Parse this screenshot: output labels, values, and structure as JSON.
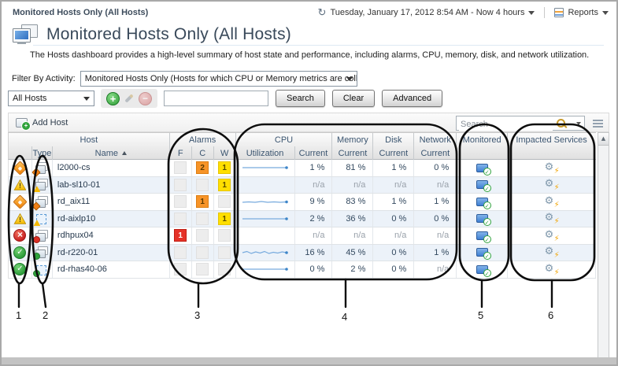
{
  "breadcrumb": "Monitored Hosts Only (All Hosts)",
  "topbar": {
    "time_range": "Tuesday, January 17, 2012 8:54 AM - Now 4 hours",
    "reports": "Reports"
  },
  "page": {
    "title": "Monitored Hosts Only (All Hosts)",
    "description": "The Hosts dashboard provides a high-level summary of host state and performance, including alarms, CPU, memory, disk, and network utilization."
  },
  "filter": {
    "label": "Filter By Activity:",
    "value": "Monitored Hosts Only (Hosts for which CPU or Memory metrics are collected)"
  },
  "toolbar": {
    "scope_value": "All Hosts",
    "search_value": "",
    "search": "Search",
    "clear": "Clear",
    "advanced": "Advanced"
  },
  "grid_toolbar": {
    "add_host": "Add Host",
    "search_placeholder": "Search"
  },
  "table": {
    "groups": {
      "host": "Host",
      "alarms": "Alarms",
      "cpu": "CPU",
      "memory": "Memory",
      "disk": "Disk",
      "network": "Network",
      "monitored": "Monitored",
      "impacted": "Impacted Services"
    },
    "subs": {
      "type": "Type",
      "name": "Name",
      "f": "F",
      "c": "C",
      "w": "W",
      "utilization": "Utilization",
      "current": "Current"
    },
    "sort_column": "Name",
    "sort_ascending": true,
    "rows": [
      {
        "name": "l2000-cs",
        "severity": "critical",
        "type": "physical",
        "alarms": {
          "f": "",
          "c": "2",
          "w": "1"
        },
        "spark": [
          7,
          7,
          7,
          7,
          7,
          7
        ],
        "cpu": "1 %",
        "memory": "81 %",
        "disk": "1 %",
        "network": "0 %"
      },
      {
        "name": "lab-sl10-01",
        "severity": "warning",
        "type": "physical",
        "alarms": {
          "f": "",
          "c": "",
          "w": "1"
        },
        "spark": null,
        "cpu": "n/a",
        "memory": "n/a",
        "disk": "n/a",
        "network": "n/a"
      },
      {
        "name": "rd_aix11",
        "severity": "critical",
        "type": "physical",
        "alarms": {
          "f": "",
          "c": "1",
          "w": ""
        },
        "spark": [
          8,
          7.5,
          8,
          7,
          8,
          7.5,
          8,
          7.5
        ],
        "cpu": "9 %",
        "memory": "83 %",
        "disk": "1 %",
        "network": "1 %"
      },
      {
        "name": "rd-aixlp10",
        "severity": "warning",
        "type": "virtual",
        "alarms": {
          "f": "",
          "c": "",
          "w": "1"
        },
        "spark": [
          7,
          7,
          7,
          7,
          7,
          7
        ],
        "cpu": "2 %",
        "memory": "36 %",
        "disk": "0 %",
        "network": "0 %"
      },
      {
        "name": "rdhpux04",
        "severity": "fatal",
        "type": "physical",
        "alarms": {
          "f": "1",
          "c": "",
          "w": ""
        },
        "spark": null,
        "cpu": "n/a",
        "memory": "n/a",
        "disk": "n/a",
        "network": "n/a"
      },
      {
        "name": "rd-r220-01",
        "severity": "normal",
        "type": "physical",
        "alarms": {
          "f": "",
          "c": "",
          "w": ""
        },
        "spark": [
          7,
          5.5,
          8,
          6,
          7.5,
          5.5,
          8,
          6.5,
          7.5,
          6,
          7
        ],
        "cpu": "16 %",
        "memory": "45 %",
        "disk": "0 %",
        "network": "1 %"
      },
      {
        "name": "rd-rhas40-06",
        "severity": "normal",
        "type": "virtual",
        "alarms": {
          "f": "",
          "c": "",
          "w": ""
        },
        "spark": [
          7,
          7,
          7,
          7,
          7,
          7
        ],
        "cpu": "0 %",
        "memory": "2 %",
        "disk": "0 %",
        "network": "n/a"
      }
    ]
  },
  "callouts": [
    "1",
    "2",
    "3",
    "4",
    "5",
    "6"
  ],
  "colors": {
    "severity_critical": "#f08018",
    "severity_warning": "#f5b800",
    "severity_fatal": "#d93025",
    "severity_normal": "#2fa23c",
    "alarm_fatal_bg": "#e53228",
    "alarm_critical_bg": "#f79428",
    "alarm_warning_bg": "#ffdf00",
    "sparkline": "#78abde",
    "monitored_blue": "#3f7fd4",
    "header_text": "#3b5570"
  }
}
